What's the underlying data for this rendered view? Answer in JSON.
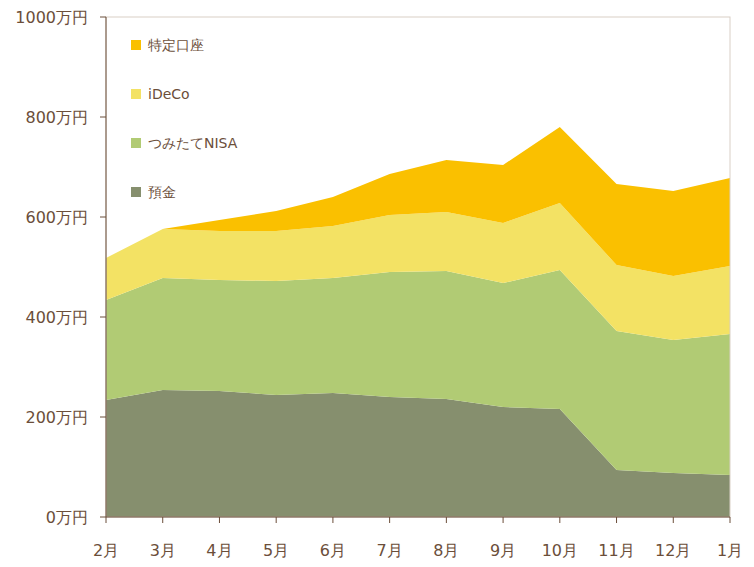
{
  "chart_data": {
    "type": "area",
    "stacked": true,
    "legend": "upper left",
    "grid": false,
    "categories": [
      "2月",
      "3月",
      "4月",
      "5月",
      "6月",
      "7月",
      "8月",
      "9月",
      "10月",
      "11月",
      "12月",
      "1月"
    ],
    "series": [
      {
        "name": "預金",
        "color": "#868f6e",
        "values": [
          234,
          254,
          252,
          244,
          248,
          240,
          236,
          220,
          216,
          94,
          88,
          84
        ]
      },
      {
        "name": "つみたてNISA",
        "color": "#b1cb74",
        "values": [
          200,
          224,
          222,
          228,
          230,
          250,
          256,
          248,
          278,
          278,
          266,
          282
        ]
      },
      {
        "name": "iDeCo",
        "color": "#f3e264",
        "values": [
          84,
          98,
          98,
          100,
          104,
          114,
          118,
          120,
          134,
          132,
          128,
          136
        ]
      },
      {
        "name": "特定口座",
        "color": "#fac000",
        "values": [
          0,
          0,
          22,
          40,
          58,
          82,
          104,
          116,
          152,
          162,
          170,
          176
        ]
      }
    ],
    "ylim": [
      0,
      1000
    ],
    "yticks": [
      {
        "value": 0,
        "label": "0万円"
      },
      {
        "value": 200,
        "label": "200万円"
      },
      {
        "value": 400,
        "label": "400万円"
      },
      {
        "value": 600,
        "label": "600万円"
      },
      {
        "value": 800,
        "label": "800万円"
      },
      {
        "value": 1000,
        "label": "1000万円"
      }
    ]
  }
}
